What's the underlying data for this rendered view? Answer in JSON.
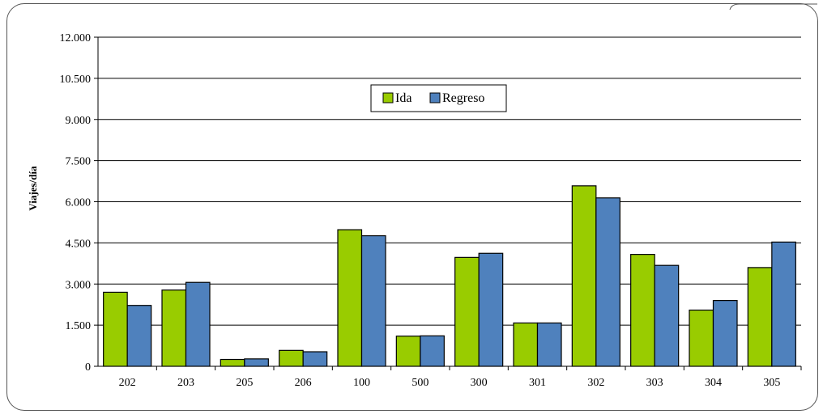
{
  "chart_data": {
    "type": "bar",
    "categories": [
      "202",
      "203",
      "205",
      "206",
      "100",
      "500",
      "300",
      "301",
      "302",
      "303",
      "304",
      "305"
    ],
    "series": [
      {
        "name": "Ida",
        "color": "#99cc00",
        "values": [
          2700,
          2780,
          250,
          580,
          4980,
          1100,
          3970,
          1580,
          6580,
          4080,
          2050,
          3600
        ]
      },
      {
        "name": "Regreso",
        "color": "#4f81bd",
        "values": [
          2220,
          3060,
          270,
          530,
          4760,
          1110,
          4120,
          1580,
          6140,
          3680,
          2400,
          4530
        ]
      }
    ],
    "title": "",
    "xlabel": "",
    "ylabel": "Viajes/día",
    "ylim": [
      0,
      12000
    ],
    "yticks": [
      "0",
      "1.500",
      "3.000",
      "4.500",
      "6.000",
      "7.500",
      "9.000",
      "10.500",
      "12.000"
    ],
    "grid": true,
    "legend_position": "top-center"
  }
}
